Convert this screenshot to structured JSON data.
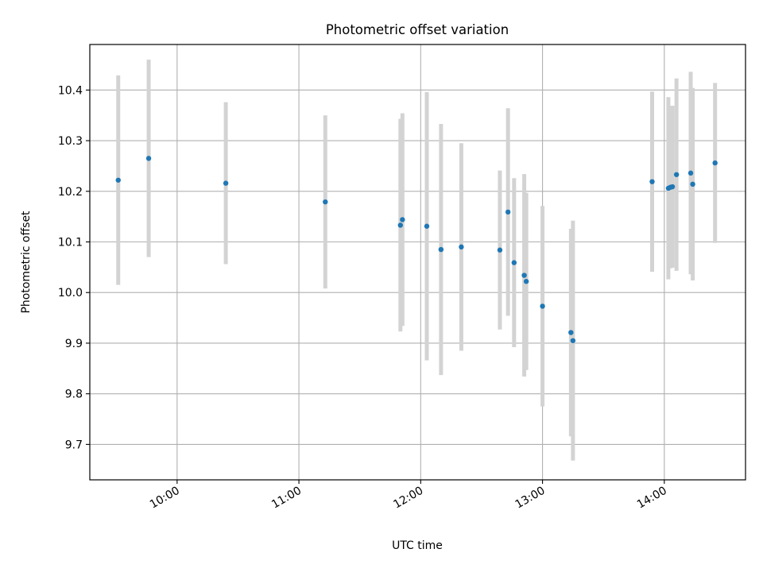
{
  "chart_data": {
    "type": "scatter",
    "title": "Photometric offset variation",
    "xlabel": "UTC time",
    "ylabel": "Photometric offset",
    "x_axis": "time",
    "xlim": [
      "09:17",
      "14:40"
    ],
    "ylim": [
      9.63,
      10.49
    ],
    "xticks": [
      "10:00",
      "11:00",
      "12:00",
      "13:00",
      "14:00"
    ],
    "yticks": [
      9.7,
      9.8,
      9.9,
      10.0,
      10.1,
      10.2,
      10.3,
      10.4
    ],
    "ytick_labels": [
      "9.7",
      "9.8",
      "9.9",
      "10.0",
      "10.1",
      "10.2",
      "10.3",
      "10.4"
    ],
    "grid": true,
    "colors": {
      "marker": "#1f77b4",
      "errorbar": "#d3d3d3",
      "grid": "#b0b0b0"
    },
    "points": [
      {
        "time": "09:31",
        "y": 10.222,
        "yerr": 0.207
      },
      {
        "time": "09:46",
        "y": 10.265,
        "yerr": 0.195
      },
      {
        "time": "10:24",
        "y": 10.216,
        "yerr": 0.16
      },
      {
        "time": "11:13",
        "y": 10.179,
        "yerr": 0.171
      },
      {
        "time": "11:50",
        "y": 10.133,
        "yerr": 0.21
      },
      {
        "time": "11:51",
        "y": 10.144,
        "yerr": 0.21
      },
      {
        "time": "12:03",
        "y": 10.131,
        "yerr": 0.265
      },
      {
        "time": "12:10",
        "y": 10.085,
        "yerr": 0.248
      },
      {
        "time": "12:20",
        "y": 10.09,
        "yerr": 0.205
      },
      {
        "time": "12:39",
        "y": 10.084,
        "yerr": 0.157
      },
      {
        "time": "12:43",
        "y": 10.159,
        "yerr": 0.205
      },
      {
        "time": "12:46",
        "y": 10.059,
        "yerr": 0.167
      },
      {
        "time": "12:51",
        "y": 10.034,
        "yerr": 0.2
      },
      {
        "time": "12:52",
        "y": 10.022,
        "yerr": 0.175
      },
      {
        "time": "13:00",
        "y": 9.973,
        "yerr": 0.198
      },
      {
        "time": "13:14",
        "y": 9.921,
        "yerr": 0.205
      },
      {
        "time": "13:15",
        "y": 9.905,
        "yerr": 0.237
      },
      {
        "time": "13:54",
        "y": 10.219,
        "yerr": 0.178
      },
      {
        "time": "14:02",
        "y": 10.206,
        "yerr": 0.18
      },
      {
        "time": "14:03",
        "y": 10.208,
        "yerr": 0.16
      },
      {
        "time": "14:04",
        "y": 10.209,
        "yerr": 0.16
      },
      {
        "time": "14:06",
        "y": 10.233,
        "yerr": 0.19
      },
      {
        "time": "14:13",
        "y": 10.236,
        "yerr": 0.2
      },
      {
        "time": "14:14",
        "y": 10.214,
        "yerr": 0.19
      },
      {
        "time": "14:25",
        "y": 10.256,
        "yerr": 0.158
      }
    ]
  }
}
